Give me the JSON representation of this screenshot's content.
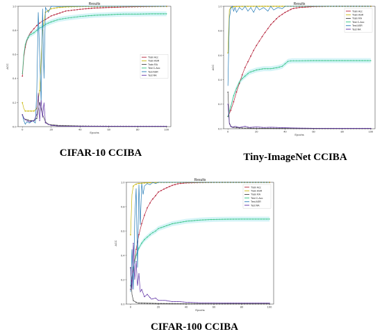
{
  "figure": {
    "captions": [
      "CIFAR-10 CCIBA",
      "Tiny-ImageNet CCIBA",
      "CIFAR-100 CCIBA"
    ]
  },
  "colors": {
    "train_acc": "#b5223a",
    "train_asr": "#c6b400",
    "train_ra": "#3f3f3f",
    "test_c_acc": "#2ec27e",
    "test_asr": "#1f77b4",
    "test_ra": "#5b2ca3",
    "band": "#b9ecf2"
  },
  "chart_data": [
    {
      "type": "line",
      "title": "Results",
      "xlabel": "Epochs",
      "ylabel": "ACC",
      "xlim": [
        -3,
        103
      ],
      "ylim": [
        0,
        1.0
      ],
      "xticks": [
        0,
        20,
        40,
        60,
        80,
        100
      ],
      "yticks": [
        0.0,
        0.2,
        0.4,
        0.6,
        0.8,
        1.0
      ],
      "legend_position": "center-right",
      "series": [
        {
          "name": "Train Acc",
          "color_key": "train_acc",
          "x": [
            0,
            1,
            2,
            3,
            5,
            7,
            10,
            13,
            16,
            20,
            25,
            30,
            40,
            50,
            60,
            70,
            80,
            90,
            100
          ],
          "y": [
            0.42,
            0.58,
            0.66,
            0.71,
            0.77,
            0.8,
            0.84,
            0.87,
            0.89,
            0.92,
            0.94,
            0.96,
            0.975,
            0.985,
            0.99,
            0.994,
            0.996,
            0.998,
            0.999
          ]
        },
        {
          "name": "Train ASR",
          "color_key": "train_asr",
          "x": [
            0,
            1,
            2,
            3,
            5,
            8,
            10,
            12,
            14,
            16,
            20,
            25,
            30,
            40,
            60,
            80,
            100
          ],
          "y": [
            0.2,
            0.15,
            0.13,
            0.13,
            0.13,
            0.13,
            0.15,
            0.3,
            0.8,
            0.95,
            0.98,
            0.99,
            0.995,
            0.998,
            0.999,
            0.999,
            0.999
          ]
        },
        {
          "name": "Train RA",
          "color_key": "train_ra",
          "x": [
            0,
            1,
            2,
            3,
            5,
            8,
            10,
            12,
            14,
            16,
            18,
            20,
            25,
            30,
            40,
            60,
            80,
            100
          ],
          "y": [
            0.1,
            0.07,
            0.06,
            0.06,
            0.05,
            0.05,
            0.07,
            0.2,
            0.1,
            0.04,
            0.02,
            0.015,
            0.01,
            0.008,
            0.005,
            0.004,
            0.003,
            0.003
          ]
        },
        {
          "name": "Test C-Acc",
          "color_key": "test_c_acc",
          "x": [
            0,
            1,
            2,
            3,
            5,
            8,
            10,
            12,
            14,
            16,
            20,
            25,
            30,
            40,
            50,
            60,
            70,
            80,
            90,
            100
          ],
          "y": [
            0.44,
            0.6,
            0.68,
            0.72,
            0.76,
            0.78,
            0.8,
            0.82,
            0.83,
            0.85,
            0.87,
            0.89,
            0.9,
            0.915,
            0.925,
            0.93,
            0.935,
            0.935,
            0.937,
            0.937
          ]
        },
        {
          "name": "Test ASR",
          "color_key": "test_asr",
          "x": [
            0,
            1,
            2,
            3,
            5,
            7,
            9,
            10,
            11,
            12,
            13,
            14,
            15,
            16,
            18,
            20,
            25,
            30,
            40,
            60,
            80,
            100
          ],
          "y": [
            0.1,
            0.05,
            0.02,
            0.04,
            0.03,
            0.05,
            0.03,
            0.3,
            0.95,
            0.6,
            0.2,
            0.98,
            0.4,
            0.99,
            0.95,
            1.0,
            0.998,
            0.999,
            1.0,
            1.0,
            1.0,
            1.0
          ]
        },
        {
          "name": "Test RA",
          "color_key": "test_ra",
          "x": [
            0,
            1,
            2,
            3,
            5,
            8,
            10,
            11,
            12,
            13,
            14,
            15,
            16,
            18,
            20,
            25,
            30,
            40,
            60,
            80,
            100
          ],
          "y": [
            0.1,
            0.07,
            0.06,
            0.05,
            0.04,
            0.05,
            0.1,
            0.28,
            0.05,
            0.22,
            0.08,
            0.2,
            0.03,
            0.02,
            0.01,
            0.005,
            0.004,
            0.003,
            0.002,
            0.002,
            0.002
          ]
        }
      ]
    },
    {
      "type": "line",
      "title": "Results",
      "xlabel": "Epochs",
      "ylabel": "ACC",
      "xlim": [
        -3,
        103
      ],
      "ylim": [
        0,
        1.0
      ],
      "xticks": [
        0,
        20,
        40,
        60,
        80,
        100
      ],
      "yticks": [
        0.0,
        0.2,
        0.4,
        0.6,
        0.8,
        1.0
      ],
      "legend_position": "top-right",
      "series": [
        {
          "name": "Train Acc",
          "color_key": "train_acc",
          "x": [
            0,
            2,
            4,
            6,
            8,
            10,
            12,
            15,
            18,
            20,
            25,
            30,
            35,
            40,
            45,
            50,
            60,
            70,
            80,
            90,
            100
          ],
          "y": [
            0.1,
            0.15,
            0.22,
            0.3,
            0.37,
            0.44,
            0.5,
            0.57,
            0.64,
            0.68,
            0.77,
            0.85,
            0.91,
            0.95,
            0.98,
            0.99,
            0.997,
            0.999,
            1.0,
            1.0,
            1.0
          ]
        },
        {
          "name": "Train ASR",
          "color_key": "train_asr",
          "x": [
            0,
            1,
            2,
            3,
            5,
            10,
            20,
            40,
            60,
            80,
            100
          ],
          "y": [
            0.62,
            0.97,
            0.99,
            0.995,
            0.998,
            0.999,
            1.0,
            1.0,
            1.0,
            1.0,
            1.0
          ]
        },
        {
          "name": "Train RA",
          "color_key": "train_ra",
          "x": [
            0,
            1,
            2,
            3,
            5,
            10,
            20,
            40,
            60,
            80,
            100
          ],
          "y": [
            0.3,
            0.05,
            0.02,
            0.015,
            0.01,
            0.006,
            0.004,
            0.003,
            0.002,
            0.002,
            0.002
          ]
        },
        {
          "name": "Test C-Acc",
          "color_key": "test_c_acc",
          "x": [
            0,
            2,
            4,
            6,
            8,
            10,
            12,
            15,
            20,
            25,
            30,
            35,
            38,
            40,
            42,
            45,
            50,
            60,
            70,
            80,
            90,
            100
          ],
          "y": [
            0.1,
            0.18,
            0.27,
            0.33,
            0.38,
            0.41,
            0.43,
            0.46,
            0.48,
            0.49,
            0.49,
            0.5,
            0.51,
            0.53,
            0.55,
            0.555,
            0.555,
            0.556,
            0.556,
            0.556,
            0.556,
            0.556
          ]
        },
        {
          "name": "Test ASR",
          "color_key": "test_asr",
          "x": [
            0,
            1,
            2,
            3,
            4,
            5,
            6,
            8,
            10,
            12,
            14,
            16,
            18,
            20,
            22,
            25,
            28,
            30,
            32,
            35,
            38,
            40,
            45,
            50,
            60,
            80,
            100
          ],
          "y": [
            0.35,
            0.9,
            0.98,
            1.0,
            0.96,
            0.99,
            0.95,
            0.99,
            0.97,
            1.0,
            0.96,
            0.99,
            0.95,
            1.0,
            0.97,
            0.99,
            0.96,
            1.0,
            0.97,
            0.99,
            0.98,
            1.0,
            1.0,
            1.0,
            1.0,
            1.0,
            1.0
          ]
        },
        {
          "name": "Test RA",
          "color_key": "test_ra",
          "x": [
            0,
            1,
            2,
            3,
            5,
            8,
            10,
            12,
            15,
            20,
            25,
            30,
            35,
            40,
            50,
            60,
            80,
            100
          ],
          "y": [
            0.2,
            0.04,
            0.02,
            0.01,
            0.02,
            0.01,
            0.015,
            0.02,
            0.01,
            0.015,
            0.01,
            0.012,
            0.01,
            0.008,
            0.005,
            0.004,
            0.003,
            0.003
          ]
        }
      ]
    },
    {
      "type": "line",
      "title": "Results",
      "xlabel": "Epochs",
      "ylabel": "ACC",
      "xlim": [
        -3,
        103
      ],
      "ylim": [
        0,
        1.0
      ],
      "xticks": [
        0,
        20,
        40,
        60,
        80,
        100
      ],
      "yticks": [
        0.0,
        0.2,
        0.4,
        0.6,
        0.8,
        1.0
      ],
      "legend_position": "top-right",
      "series": [
        {
          "name": "Train Acc",
          "color_key": "train_acc",
          "x": [
            0,
            2,
            4,
            6,
            8,
            10,
            12,
            15,
            18,
            20,
            25,
            30,
            35,
            40,
            50,
            60,
            70,
            80,
            90,
            100
          ],
          "y": [
            0.12,
            0.28,
            0.45,
            0.57,
            0.66,
            0.73,
            0.79,
            0.85,
            0.89,
            0.92,
            0.95,
            0.975,
            0.99,
            0.995,
            0.998,
            0.999,
            1.0,
            1.0,
            1.0,
            1.0
          ]
        },
        {
          "name": "Train ASR",
          "color_key": "train_asr",
          "x": [
            0,
            1,
            2,
            3,
            5,
            10,
            20,
            40,
            60,
            80,
            100
          ],
          "y": [
            0.57,
            0.9,
            0.97,
            0.98,
            0.99,
            0.995,
            0.999,
            1.0,
            1.0,
            1.0,
            1.0
          ]
        },
        {
          "name": "Train RA",
          "color_key": "train_ra",
          "x": [
            0,
            1,
            2,
            3,
            5,
            10,
            20,
            40,
            60,
            80,
            100
          ],
          "y": [
            0.3,
            0.08,
            0.03,
            0.02,
            0.01,
            0.008,
            0.005,
            0.003,
            0.002,
            0.002,
            0.002
          ]
        },
        {
          "name": "Test C-Acc",
          "color_key": "test_c_acc",
          "x": [
            0,
            2,
            4,
            6,
            8,
            10,
            12,
            15,
            18,
            20,
            25,
            30,
            35,
            40,
            45,
            50,
            60,
            70,
            80,
            90,
            100
          ],
          "y": [
            0.15,
            0.3,
            0.4,
            0.46,
            0.5,
            0.53,
            0.55,
            0.58,
            0.6,
            0.62,
            0.64,
            0.66,
            0.67,
            0.68,
            0.685,
            0.69,
            0.695,
            0.697,
            0.698,
            0.698,
            0.698
          ]
        },
        {
          "name": "Test ASR",
          "color_key": "test_asr",
          "x": [
            0,
            1,
            2,
            3,
            4,
            5,
            6,
            7,
            8,
            9,
            10,
            12,
            14,
            16,
            18,
            20,
            25,
            30,
            35,
            40,
            50,
            60,
            80,
            100
          ],
          "y": [
            0.1,
            0.45,
            0.12,
            0.7,
            0.95,
            0.3,
            0.98,
            0.65,
            0.99,
            0.9,
            0.97,
            0.99,
            0.98,
            1.0,
            0.99,
            1.0,
            1.0,
            1.0,
            1.0,
            1.0,
            1.0,
            1.0,
            1.0,
            1.0
          ]
        },
        {
          "name": "Test RA",
          "color_key": "test_ra",
          "x": [
            0,
            1,
            2,
            3,
            4,
            5,
            6,
            7,
            8,
            10,
            12,
            15,
            18,
            20,
            25,
            30,
            35,
            40,
            50,
            60,
            80,
            100
          ],
          "y": [
            0.3,
            0.12,
            0.5,
            0.2,
            0.35,
            0.15,
            0.25,
            0.1,
            0.12,
            0.06,
            0.08,
            0.04,
            0.05,
            0.03,
            0.03,
            0.02,
            0.02,
            0.015,
            0.01,
            0.01,
            0.008,
            0.008
          ]
        }
      ]
    }
  ]
}
